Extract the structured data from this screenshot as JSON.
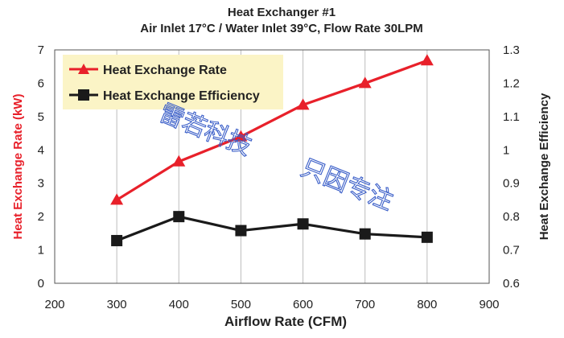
{
  "chart_data": {
    "type": "line",
    "title": "Heat Exchanger #1",
    "subtitle": "Air Inlet 17°C / Water Inlet 39°C, Flow Rate 30LPM",
    "xlabel": "Airflow Rate (CFM)",
    "ylabel_left": "Heat Exchange Rate (kW)",
    "ylabel_right": "Heat Exchange Efficiency",
    "xlim": [
      200,
      900
    ],
    "x_ticks": [
      "200",
      "300",
      "400",
      "500",
      "600",
      "700",
      "800",
      "900"
    ],
    "ylim_left": [
      0,
      7
    ],
    "y_ticks_left": [
      "0",
      "1",
      "2",
      "3",
      "4",
      "5",
      "6",
      "7"
    ],
    "ylim_right": [
      0.6,
      1.3
    ],
    "y_ticks_right": [
      "0.6",
      "0.7",
      "0.8",
      "0.9",
      "1",
      "1.1",
      "1.2",
      "1.3"
    ],
    "grid": "vertical",
    "legend_position": "top-left",
    "series": [
      {
        "name": "Heat Exchange Rate",
        "axis": "left",
        "marker": "triangle",
        "color": "#e8202a",
        "x": [
          300,
          400,
          500,
          600,
          700,
          800
        ],
        "values": [
          2.5,
          3.65,
          4.4,
          5.35,
          6.0,
          6.68
        ]
      },
      {
        "name": "Heat Exchange Efficiency",
        "axis": "right",
        "marker": "square",
        "color": "#1a1a1a",
        "x": [
          300,
          400,
          500,
          600,
          700,
          800
        ],
        "values": [
          0.728,
          0.8,
          0.758,
          0.778,
          0.748,
          0.738
        ]
      }
    ]
  },
  "watermark": {
    "lines": [
      "雷若科技",
      "只因专注"
    ],
    "color": "#3a5ec8"
  },
  "colors": {
    "left_axis_label": "#e8202a",
    "legend_bg": "#fbf4c6",
    "grid": "#bdbdbd"
  }
}
